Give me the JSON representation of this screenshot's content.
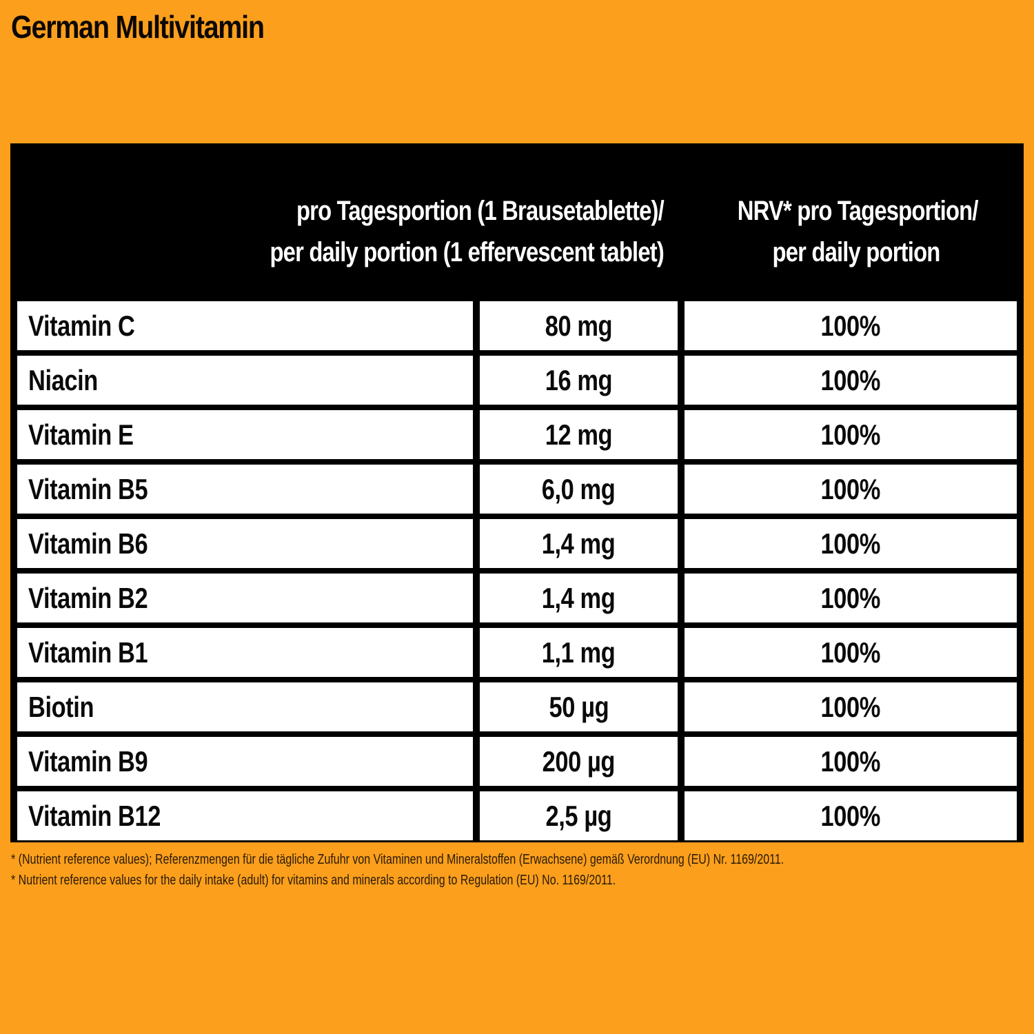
{
  "title": "German Multivitamin",
  "colors": {
    "background": "#fb9f1c",
    "table_border": "#000000",
    "cell_bg": "#ffffff",
    "header_text": "#ffffff"
  },
  "table": {
    "headers": {
      "nutrient": "",
      "amount_line1": "pro Tagesportion (1 Brausetablette)/",
      "amount_line2": "per daily portion (1 effervescent tablet)",
      "nrv_line1": "NRV* pro Tagesportion/",
      "nrv_line2": "per daily portion"
    },
    "rows": [
      {
        "nutrient": "Vitamin C",
        "amount": "80 mg",
        "nrv": "100%"
      },
      {
        "nutrient": "Niacin",
        "amount": "16 mg",
        "nrv": "100%"
      },
      {
        "nutrient": "Vitamin E",
        "amount": "12 mg",
        "nrv": "100%"
      },
      {
        "nutrient": "Vitamin B5",
        "amount": "6,0 mg",
        "nrv": "100%"
      },
      {
        "nutrient": "Vitamin B6",
        "amount": "1,4 mg",
        "nrv": "100%"
      },
      {
        "nutrient": "Vitamin B2",
        "amount": "1,4 mg",
        "nrv": "100%"
      },
      {
        "nutrient": "Vitamin B1",
        "amount": "1,1 mg",
        "nrv": "100%"
      },
      {
        "nutrient": "Biotin",
        "amount": "50 µg",
        "nrv": "100%"
      },
      {
        "nutrient": "Vitamin B9",
        "amount": "200 µg",
        "nrv": "100%"
      },
      {
        "nutrient": "Vitamin B12",
        "amount": "2,5 µg",
        "nrv": "100%"
      }
    ]
  },
  "footnotes": [
    "* (Nutrient reference values); Referenzmengen für die tägliche Zufuhr von Vitaminen und Mineralstoffen (Erwachsene) gemäß Verordnung (EU) Nr. 1169/2011.",
    "* Nutrient reference values for the daily intake (adult) for vitamins and minerals according to Regulation (EU) No. 1169/2011."
  ]
}
